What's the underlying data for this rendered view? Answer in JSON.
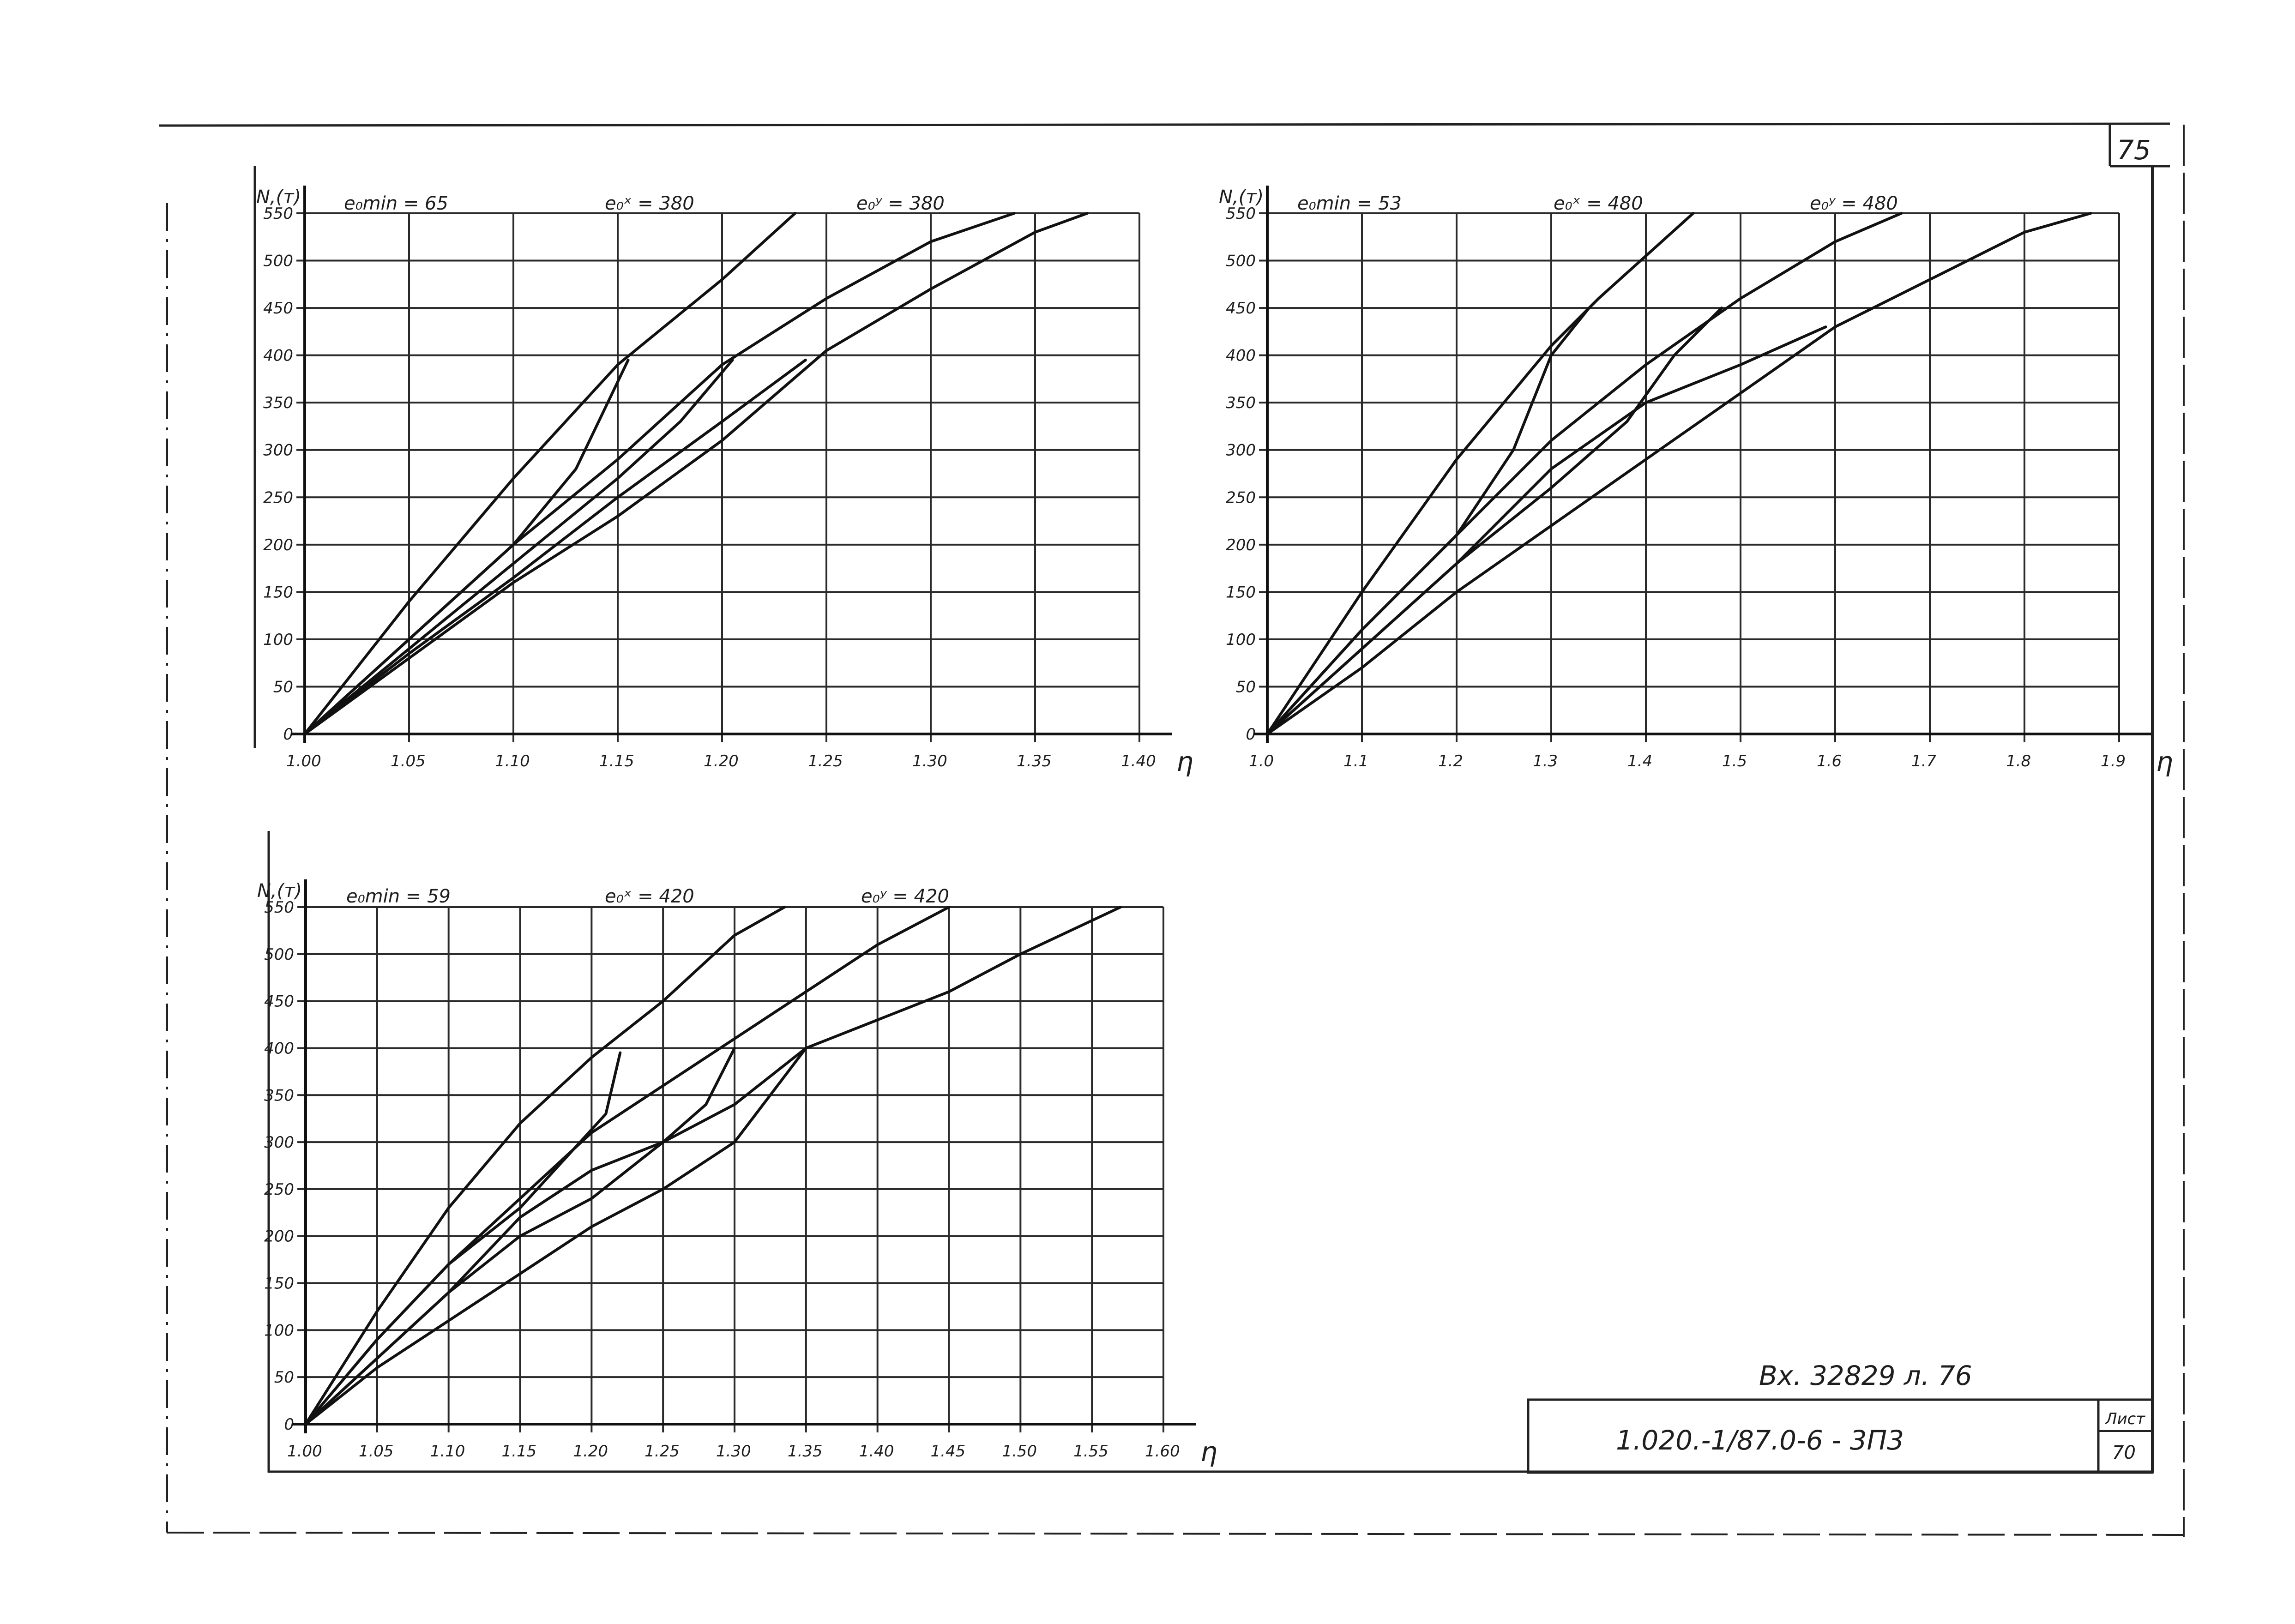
{
  "sheet": {
    "page_number": "75",
    "stamp_text": "Вх. 32829 л. 76",
    "title_block_code": "1.020.-1/87.0-6 - 3П3",
    "title_block_sheet_label": "Лист",
    "title_block_sheet_number": "70"
  },
  "chart_data": [
    {
      "type": "line",
      "xlabel": "η",
      "ylabel": "N,(т)",
      "xlim": [
        1.0,
        1.4
      ],
      "ylim": [
        0,
        550
      ],
      "x_ticks": [
        "1.00",
        "1.05",
        "1.10",
        "1.15",
        "1.20",
        "1.25",
        "1.30",
        "1.35",
        "1.40"
      ],
      "y_ticks": [
        "0",
        "50",
        "100",
        "150",
        "200",
        "250",
        "300",
        "350",
        "400",
        "450",
        "500",
        "550"
      ],
      "annotations": [
        "e₀min = 65",
        "e₀ˣ = 380",
        "e₀ʸ = 380"
      ],
      "grid": true,
      "series": [
        {
          "x": [
            1.0,
            1.05,
            1.1,
            1.15,
            1.2,
            1.235
          ],
          "y": [
            0,
            140,
            270,
            390,
            480,
            550
          ]
        },
        {
          "x": [
            1.0,
            1.05,
            1.1,
            1.15,
            1.2,
            1.25,
            1.3,
            1.34
          ],
          "y": [
            0,
            100,
            200,
            290,
            390,
            460,
            520,
            550
          ]
        },
        {
          "x": [
            1.0,
            1.05,
            1.1,
            1.15,
            1.2,
            1.25,
            1.3,
            1.35,
            1.375
          ],
          "y": [
            0,
            80,
            160,
            230,
            310,
            405,
            470,
            530,
            550
          ]
        },
        {
          "x": [
            1.0,
            1.05,
            1.1,
            1.15,
            1.2,
            1.24
          ],
          "y": [
            0,
            85,
            165,
            250,
            330,
            395
          ]
        },
        {
          "x": [
            1.0,
            1.05,
            1.1,
            1.13,
            1.155
          ],
          "y": [
            0,
            100,
            200,
            280,
            395
          ]
        },
        {
          "x": [
            1.0,
            1.05,
            1.1,
            1.15,
            1.18,
            1.205
          ],
          "y": [
            0,
            90,
            180,
            270,
            330,
            395
          ]
        }
      ]
    },
    {
      "type": "line",
      "xlabel": "η",
      "ylabel": "N,(т)",
      "xlim": [
        1.0,
        1.9
      ],
      "ylim": [
        0,
        550
      ],
      "x_ticks": [
        "1.0",
        "1.1",
        "1.2",
        "1.3",
        "1.4",
        "1.5",
        "1.6",
        "1.7",
        "1.8",
        "1.9"
      ],
      "y_ticks": [
        "0",
        "50",
        "100",
        "150",
        "200",
        "250",
        "300",
        "350",
        "400",
        "450",
        "500",
        "550"
      ],
      "annotations": [
        "e₀min = 53",
        "e₀ˣ = 480",
        "e₀ʸ = 480"
      ],
      "grid": true,
      "series": [
        {
          "x": [
            1.0,
            1.1,
            1.2,
            1.3,
            1.35,
            1.45
          ],
          "y": [
            0,
            150,
            290,
            410,
            460,
            550
          ]
        },
        {
          "x": [
            1.0,
            1.1,
            1.2,
            1.3,
            1.4,
            1.5,
            1.6,
            1.67
          ],
          "y": [
            0,
            110,
            210,
            310,
            390,
            460,
            520,
            550
          ]
        },
        {
          "x": [
            1.0,
            1.1,
            1.2,
            1.3,
            1.4,
            1.5,
            1.6,
            1.7,
            1.8,
            1.87
          ],
          "y": [
            0,
            70,
            150,
            220,
            290,
            360,
            430,
            480,
            530,
            550
          ]
        },
        {
          "x": [
            1.0,
            1.1,
            1.2,
            1.3,
            1.4,
            1.5,
            1.59
          ],
          "y": [
            0,
            90,
            180,
            280,
            350,
            390,
            430
          ]
        },
        {
          "x": [
            1.0,
            1.1,
            1.2,
            1.26,
            1.3,
            1.34
          ],
          "y": [
            0,
            110,
            210,
            300,
            400,
            450
          ]
        },
        {
          "x": [
            1.0,
            1.1,
            1.2,
            1.3,
            1.38,
            1.43,
            1.48
          ],
          "y": [
            0,
            90,
            180,
            260,
            330,
            400,
            450
          ]
        }
      ]
    },
    {
      "type": "line",
      "xlabel": "η",
      "ylabel": "N,(т)",
      "xlim": [
        1.0,
        1.6
      ],
      "ylim": [
        0,
        550
      ],
      "x_ticks": [
        "1.00",
        "1.05",
        "1.10",
        "1.15",
        "1.20",
        "1.25",
        "1.30",
        "1.35",
        "1.40",
        "1.45",
        "1.50",
        "1.55",
        "1.60"
      ],
      "y_ticks": [
        "0",
        "50",
        "100",
        "150",
        "200",
        "250",
        "300",
        "350",
        "400",
        "450",
        "500",
        "550"
      ],
      "annotations": [
        "e₀min = 59",
        "e₀ˣ = 420",
        "e₀ʸ = 420"
      ],
      "grid": true,
      "series": [
        {
          "x": [
            1.0,
            1.05,
            1.1,
            1.15,
            1.2,
            1.25,
            1.3,
            1.335
          ],
          "y": [
            0,
            120,
            230,
            320,
            390,
            450,
            520,
            550
          ]
        },
        {
          "x": [
            1.0,
            1.05,
            1.1,
            1.15,
            1.2,
            1.25,
            1.3,
            1.35,
            1.4,
            1.45
          ],
          "y": [
            0,
            90,
            170,
            240,
            310,
            360,
            410,
            460,
            510,
            550
          ]
        },
        {
          "x": [
            1.0,
            1.05,
            1.1,
            1.15,
            1.2,
            1.25,
            1.3,
            1.35,
            1.4,
            1.45,
            1.5,
            1.57
          ],
          "y": [
            0,
            60,
            110,
            160,
            210,
            250,
            300,
            400,
            430,
            460,
            500,
            550
          ]
        },
        {
          "x": [
            1.0,
            1.05,
            1.1,
            1.15,
            1.2,
            1.25,
            1.3,
            1.35
          ],
          "y": [
            0,
            70,
            140,
            220,
            270,
            300,
            340,
            400
          ]
        },
        {
          "x": [
            1.0,
            1.05,
            1.1,
            1.15,
            1.18,
            1.21,
            1.22
          ],
          "y": [
            0,
            90,
            170,
            230,
            280,
            330,
            395
          ]
        },
        {
          "x": [
            1.0,
            1.05,
            1.1,
            1.15,
            1.2,
            1.25,
            1.28,
            1.3
          ],
          "y": [
            0,
            70,
            140,
            200,
            240,
            300,
            340,
            400
          ]
        }
      ]
    }
  ]
}
